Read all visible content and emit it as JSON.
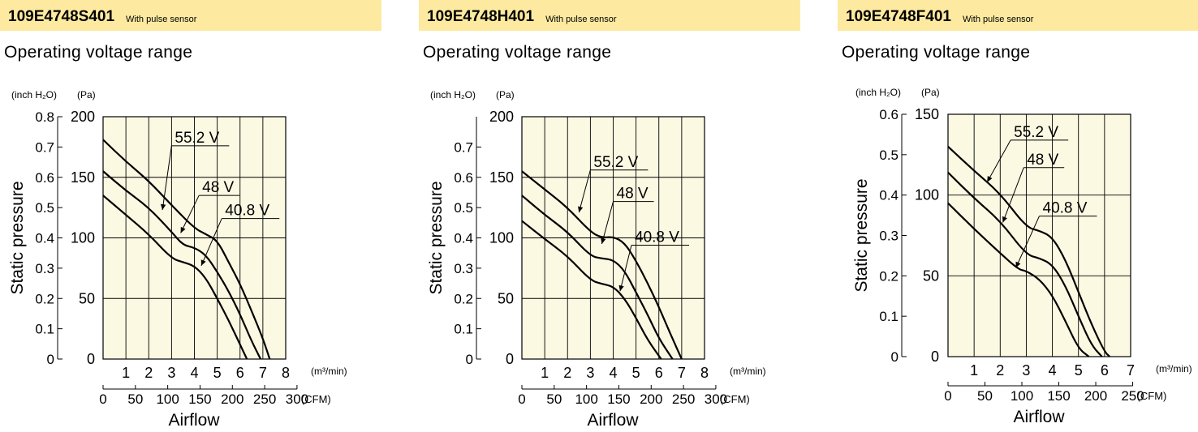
{
  "panels": [
    {
      "model": "109E4748S401",
      "sensor": "With pulse sensor",
      "subtitle": "Operating voltage range"
    },
    {
      "model": "109E4748H401",
      "sensor": "With pulse sensor",
      "subtitle": "Operating voltage range"
    },
    {
      "model": "109E4748F401",
      "sensor": "With pulse sensor",
      "subtitle": "Operating voltage range"
    }
  ],
  "colors": {
    "header": "#fdeaa0",
    "plot_bg": "#fcf9e3",
    "line": "#000000"
  },
  "chart_data": [
    {
      "type": "line",
      "ylabel": "Static pressure",
      "xlabel": "Airflow",
      "y_units_left": "(inch H₂O)",
      "y_units_right": "(Pa)",
      "x_units_top": "(m³/min)",
      "x_units_bottom": "(CFM)",
      "xlim": [
        0,
        8
      ],
      "ylim": [
        0,
        200
      ],
      "x_ticks": [
        1,
        2,
        3,
        4,
        5,
        6,
        7,
        8
      ],
      "y_ticks": [
        0,
        50,
        100,
        150,
        200
      ],
      "inch_ticks": [
        "0",
        "0.1",
        "0.2",
        "0.3",
        "0.4",
        "0.5",
        "0.6",
        "0.7",
        "0.8"
      ],
      "inch_max": 0.8,
      "cfm_ticks": [
        "0",
        "50",
        "100",
        "150",
        "200",
        "250",
        "300"
      ],
      "cfm_max": 300,
      "series": [
        {
          "name": "55.2 V",
          "x": [
            0,
            1,
            2,
            3,
            4,
            4.5,
            5,
            5.5,
            6,
            6.5,
            7,
            7.3
          ],
          "y": [
            181,
            163,
            147,
            127,
            108,
            103,
            98,
            80,
            62,
            40,
            17,
            0
          ],
          "label": [
            3.0,
            176
          ],
          "arrow": [
            2.6,
            123
          ]
        },
        {
          "name": "48 V",
          "x": [
            0,
            1,
            2,
            3,
            3.5,
            4,
            4.5,
            5,
            5.5,
            6,
            6.5,
            6.9
          ],
          "y": [
            155,
            139,
            125,
            105,
            94,
            92,
            86,
            72,
            56,
            37,
            15,
            0
          ],
          "label": [
            4.2,
            135
          ],
          "arrow": [
            3.4,
            104
          ]
        },
        {
          "name": "40.8 V",
          "x": [
            0,
            1,
            2,
            3,
            3.5,
            4,
            4.5,
            5,
            5.5,
            6,
            6.3
          ],
          "y": [
            135,
            119,
            103,
            83,
            80,
            77,
            67,
            50,
            32,
            12,
            0
          ],
          "label": [
            5.2,
            116
          ],
          "arrow": [
            4.3,
            77
          ]
        }
      ]
    },
    {
      "type": "line",
      "ylabel": "Static pressure",
      "xlabel": "Airflow",
      "y_units_left": "(inch H₂O)",
      "y_units_right": "(Pa)",
      "x_units_top": "(m³/min)",
      "x_units_bottom": "(CFM)",
      "xlim": [
        0,
        8
      ],
      "ylim": [
        0,
        200
      ],
      "x_ticks": [
        1,
        2,
        3,
        4,
        5,
        6,
        7,
        8
      ],
      "y_ticks": [
        0,
        50,
        100,
        150,
        200
      ],
      "inch_ticks": [
        "0",
        "0.1",
        "0.2",
        "0.3",
        "0.4",
        "0.5",
        "0.6",
        "0.7"
      ],
      "inch_max": 0.8,
      "cfm_ticks": [
        "0",
        "50",
        "100",
        "150",
        "200",
        "250",
        "300"
      ],
      "cfm_max": 300,
      "series": [
        {
          "name": "55.2 V",
          "x": [
            0,
            1,
            2,
            3,
            3.5,
            4,
            4.5,
            5,
            5.5,
            6,
            6.5,
            7
          ],
          "y": [
            155,
            140,
            125,
            105,
            100,
            101,
            96,
            81,
            63,
            43,
            21,
            0
          ],
          "label": [
            3.0,
            156
          ],
          "arrow": [
            2.5,
            121
          ]
        },
        {
          "name": "48 V",
          "x": [
            0,
            1,
            2,
            3,
            3.5,
            4,
            4.5,
            5,
            5.5,
            6,
            6.6
          ],
          "y": [
            135,
            119,
            105,
            85,
            83,
            82,
            73,
            55,
            37,
            17,
            0
          ],
          "label": [
            4.0,
            130
          ],
          "arrow": [
            3.5,
            95
          ]
        },
        {
          "name": "40.8 V",
          "x": [
            0,
            1,
            2,
            3,
            3.5,
            4,
            4.5,
            5,
            5.5,
            6.1
          ],
          "y": [
            114,
            99,
            85,
            65,
            62,
            60,
            50,
            34,
            16,
            0
          ],
          "label": [
            4.8,
            94
          ],
          "arrow": [
            4.3,
            56
          ]
        }
      ]
    },
    {
      "type": "line",
      "ylabel": "Static pressure",
      "xlabel": "Airflow",
      "y_units_left": "(inch H₂O)",
      "y_units_right": "(Pa)",
      "x_units_top": "(m³/min)",
      "x_units_bottom": "(CFM)",
      "xlim": [
        0,
        7
      ],
      "ylim": [
        0,
        150
      ],
      "x_ticks": [
        1,
        2,
        3,
        4,
        5,
        6,
        7
      ],
      "y_ticks": [
        0,
        50,
        100,
        150
      ],
      "inch_ticks": [
        "0",
        "0.1",
        "0.2",
        "0.3",
        "0.4",
        "0.5",
        "0.6"
      ],
      "inch_max": 0.6,
      "cfm_ticks": [
        "0",
        "50",
        "100",
        "150",
        "200",
        "250"
      ],
      "cfm_max": 250,
      "series": [
        {
          "name": "55.2 V",
          "x": [
            0,
            1,
            2,
            3,
            3.5,
            4,
            4.5,
            5,
            5.5,
            6,
            6.2
          ],
          "y": [
            130,
            115,
            101,
            80,
            78,
            74,
            60,
            40,
            20,
            3,
            0
          ],
          "label": [
            2.4,
            134
          ],
          "arrow": [
            1.5,
            108
          ]
        },
        {
          "name": "48 V",
          "x": [
            0,
            1,
            2,
            3,
            3.5,
            4,
            4.5,
            5,
            5.5,
            5.9
          ],
          "y": [
            114,
            98,
            84,
            63,
            61,
            57,
            44,
            25,
            7,
            0
          ],
          "label": [
            2.9,
            117
          ],
          "arrow": [
            2.1,
            83
          ]
        },
        {
          "name": "40.8 V",
          "x": [
            0,
            1,
            2,
            2.7,
            3,
            3.5,
            4,
            4.5,
            5,
            5.4
          ],
          "y": [
            95,
            79,
            64,
            54,
            53,
            48,
            38,
            22,
            5,
            0
          ],
          "label": [
            3.5,
            87
          ],
          "arrow": [
            2.6,
            55
          ]
        }
      ]
    }
  ]
}
